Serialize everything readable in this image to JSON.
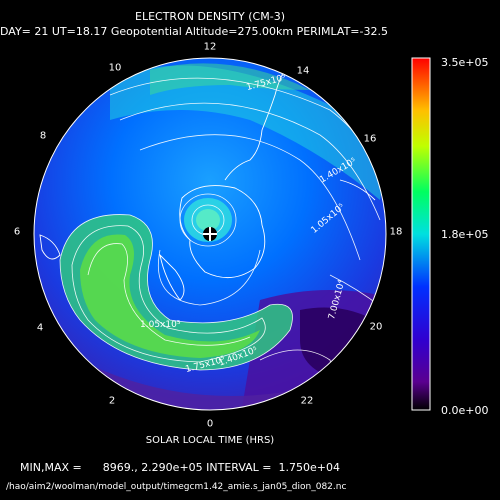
{
  "title": "ELECTRON DENSITY (CM-3)",
  "subtitle": "DAY= 21 UT=18.17 Geopotential Altitude=275.00km PERIMLAT=-32.5",
  "xlabel": "SOLAR LOCAL TIME (HRS)",
  "minmax_line": "MIN,MAX =      8969., 2.290e+05 INTERVAL =  1.750e+04",
  "file_path": "/hao/aim2/woolman/model_output/timegcm1.42_amie.s_jan05_dion_082.nc",
  "colorbar": {
    "top": "3.5e+05",
    "mid": "1.8e+05",
    "bottom": "0.0e+00"
  },
  "local_time_labels": [
    "0",
    "2",
    "4",
    "6",
    "8",
    "10",
    "12",
    "14",
    "16",
    "18",
    "20",
    "22"
  ],
  "contour_labels": [
    "1.40x10⁵",
    "1.05x10⁵",
    "7.00x10⁴",
    "1.05x10⁵",
    "1.40x10⁵",
    "1.75x10⁵",
    "1.75x10⁵"
  ],
  "colors": {
    "background": "#000000",
    "low": "#3a0070",
    "mid": "#1060ff",
    "peak": "#30e030",
    "high": "#ff2000"
  },
  "chart_data": {
    "type": "heatmap",
    "title": "ELECTRON DENSITY (CM-3)",
    "projection": "polar-south",
    "min": 8969,
    "max": 229000,
    "interval": 17500,
    "colorbar_range": [
      0,
      350000
    ]
  }
}
